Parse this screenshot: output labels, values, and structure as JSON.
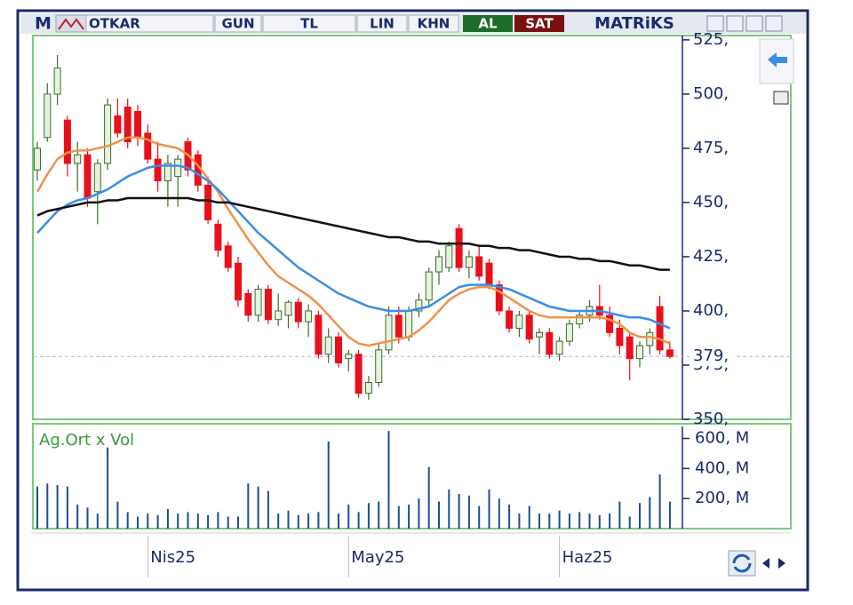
{
  "toolbar": {
    "logo": "M",
    "symbol": "OTKAR",
    "buttons": [
      "GUN",
      "TL",
      "LIN",
      "KHN"
    ],
    "buy": "AL",
    "sell": "SAT",
    "brand": "MATRiKS"
  },
  "chart_data": [
    {
      "type": "candlestick",
      "categories": [
        null,
        null,
        null,
        null,
        null,
        null,
        null,
        null,
        null,
        null,
        null,
        "Nis25",
        null,
        null,
        null,
        null,
        null,
        null,
        null,
        null,
        null,
        null,
        null,
        null,
        null,
        null,
        null,
        null,
        null,
        null,
        null,
        "May25",
        null,
        null,
        null,
        null,
        null,
        null,
        null,
        null,
        null,
        null,
        null,
        null,
        null,
        null,
        null,
        null,
        null,
        null,
        null,
        null,
        "Haz25",
        null,
        null,
        null,
        null,
        null,
        null,
        null,
        null,
        null,
        null,
        null
      ],
      "open": [
        465,
        480,
        500,
        488,
        468,
        472,
        455,
        468,
        490,
        494,
        492,
        482,
        470,
        460,
        462,
        478,
        472,
        458,
        440,
        430,
        422,
        408,
        398,
        410,
        396,
        398,
        404,
        395,
        398,
        380,
        388,
        378,
        380,
        362,
        367,
        382,
        398,
        388,
        400,
        405,
        418,
        420,
        438,
        420,
        425,
        422,
        412,
        400,
        392,
        398,
        388,
        390,
        380,
        386,
        394,
        398,
        402,
        398,
        392,
        388,
        378,
        384,
        402,
        382
      ],
      "high": [
        478,
        505,
        518,
        490,
        478,
        475,
        470,
        498,
        498,
        498,
        495,
        486,
        478,
        472,
        472,
        480,
        474,
        462,
        442,
        432,
        425,
        410,
        412,
        412,
        408,
        405,
        406,
        403,
        400,
        392,
        390,
        382,
        382,
        370,
        385,
        402,
        402,
        402,
        408,
        420,
        428,
        432,
        440,
        428,
        430,
        424,
        414,
        402,
        400,
        400,
        392,
        392,
        388,
        396,
        400,
        405,
        412,
        402,
        396,
        390,
        386,
        392,
        407,
        386
      ],
      "low": [
        460,
        478,
        495,
        462,
        455,
        448,
        440,
        465,
        480,
        475,
        476,
        468,
        455,
        448,
        448,
        462,
        455,
        440,
        425,
        418,
        402,
        395,
        395,
        394,
        393,
        392,
        392,
        388,
        378,
        376,
        374,
        372,
        360,
        359,
        365,
        380,
        385,
        386,
        397,
        402,
        412,
        418,
        418,
        415,
        414,
        410,
        398,
        390,
        388,
        385,
        380,
        378,
        377,
        384,
        392,
        395,
        396,
        388,
        380,
        368,
        374,
        380,
        380,
        378
      ],
      "close": [
        475,
        500,
        512,
        468,
        472,
        452,
        468,
        495,
        482,
        478,
        480,
        470,
        460,
        468,
        470,
        465,
        458,
        442,
        428,
        420,
        405,
        398,
        410,
        396,
        400,
        404,
        395,
        400,
        380,
        388,
        376,
        380,
        362,
        367,
        382,
        398,
        388,
        400,
        405,
        418,
        425,
        430,
        420,
        425,
        416,
        412,
        400,
        392,
        398,
        387,
        390,
        380,
        386,
        394,
        398,
        402,
        398,
        390,
        384,
        378,
        384,
        390,
        382,
        379
      ],
      "up_color": "#e6f4dc",
      "down_color": "#e8101a",
      "series": [
        {
          "color": "#f0914a",
          "values": [
            455,
            463,
            470,
            473,
            474,
            474,
            475,
            476,
            478,
            480,
            480,
            479,
            477,
            476,
            475,
            472,
            467,
            461,
            455,
            447,
            440,
            433,
            427,
            421,
            416,
            413,
            410,
            407,
            403,
            398,
            393,
            388,
            385,
            384,
            385,
            386,
            387,
            388,
            391,
            395,
            400,
            405,
            408,
            410,
            411,
            411,
            409,
            406,
            403,
            400,
            398,
            397,
            397,
            397,
            397,
            397,
            397,
            396,
            394,
            390,
            388,
            388,
            387,
            385
          ]
        },
        {
          "color": "#3a8ee6",
          "values": [
            436,
            441,
            446,
            449,
            451,
            452,
            454,
            456,
            459,
            462,
            464,
            466,
            467,
            467,
            467,
            466,
            463,
            460,
            456,
            451,
            446,
            441,
            436,
            432,
            428,
            424,
            420,
            417,
            414,
            411,
            408,
            406,
            404,
            402,
            401,
            400,
            400,
            400,
            401,
            402,
            405,
            408,
            411,
            412,
            412,
            412,
            411,
            410,
            408,
            406,
            404,
            402,
            401,
            400,
            400,
            400,
            400,
            399,
            398,
            397,
            397,
            396,
            394,
            392
          ]
        },
        {
          "color": "#111111",
          "values": [
            444,
            446,
            447,
            448,
            449,
            450,
            450,
            451,
            451,
            452,
            452,
            452,
            452,
            452,
            452,
            452,
            451,
            451,
            450,
            450,
            449,
            448,
            447,
            446,
            445,
            444,
            443,
            442,
            441,
            440,
            439,
            438,
            437,
            436,
            435,
            434,
            434,
            433,
            432,
            432,
            431,
            431,
            431,
            431,
            430,
            430,
            429,
            429,
            428,
            428,
            427,
            426,
            425,
            425,
            424,
            424,
            423,
            423,
            422,
            421,
            421,
            420,
            419,
            419
          ]
        }
      ],
      "ylim": [
        350,
        527
      ],
      "yticks": [
        {
          "value": 350,
          "label": "350,"
        },
        {
          "value": 375,
          "label": "375,"
        },
        {
          "value": 400,
          "label": "400,"
        },
        {
          "value": 425,
          "label": "425,"
        },
        {
          "value": 450,
          "label": "450,"
        },
        {
          "value": 475,
          "label": "475,"
        },
        {
          "value": 500,
          "label": "500,"
        },
        {
          "value": 525,
          "label": "525,"
        }
      ],
      "price_marker": {
        "value": 379,
        "label": "379,"
      }
    },
    {
      "type": "bar",
      "title": "Ag.Ort x Vol",
      "color": "#1f4e8c",
      "values": [
        280,
        300,
        290,
        280,
        160,
        140,
        100,
        540,
        180,
        110,
        80,
        100,
        90,
        130,
        100,
        110,
        100,
        90,
        110,
        80,
        80,
        300,
        280,
        250,
        100,
        120,
        90,
        100,
        110,
        580,
        100,
        160,
        110,
        170,
        180,
        650,
        150,
        160,
        200,
        410,
        180,
        260,
        230,
        220,
        150,
        260,
        200,
        160,
        100,
        150,
        100,
        100,
        120,
        100,
        110,
        100,
        90,
        100,
        180,
        80,
        170,
        210,
        360,
        180
      ],
      "ylim": [
        0,
        680
      ],
      "yticks": [
        {
          "value": 200,
          "label": "200, M"
        },
        {
          "value": 400,
          "label": "400, M"
        },
        {
          "value": 600,
          "label": "600, M"
        }
      ]
    }
  ]
}
